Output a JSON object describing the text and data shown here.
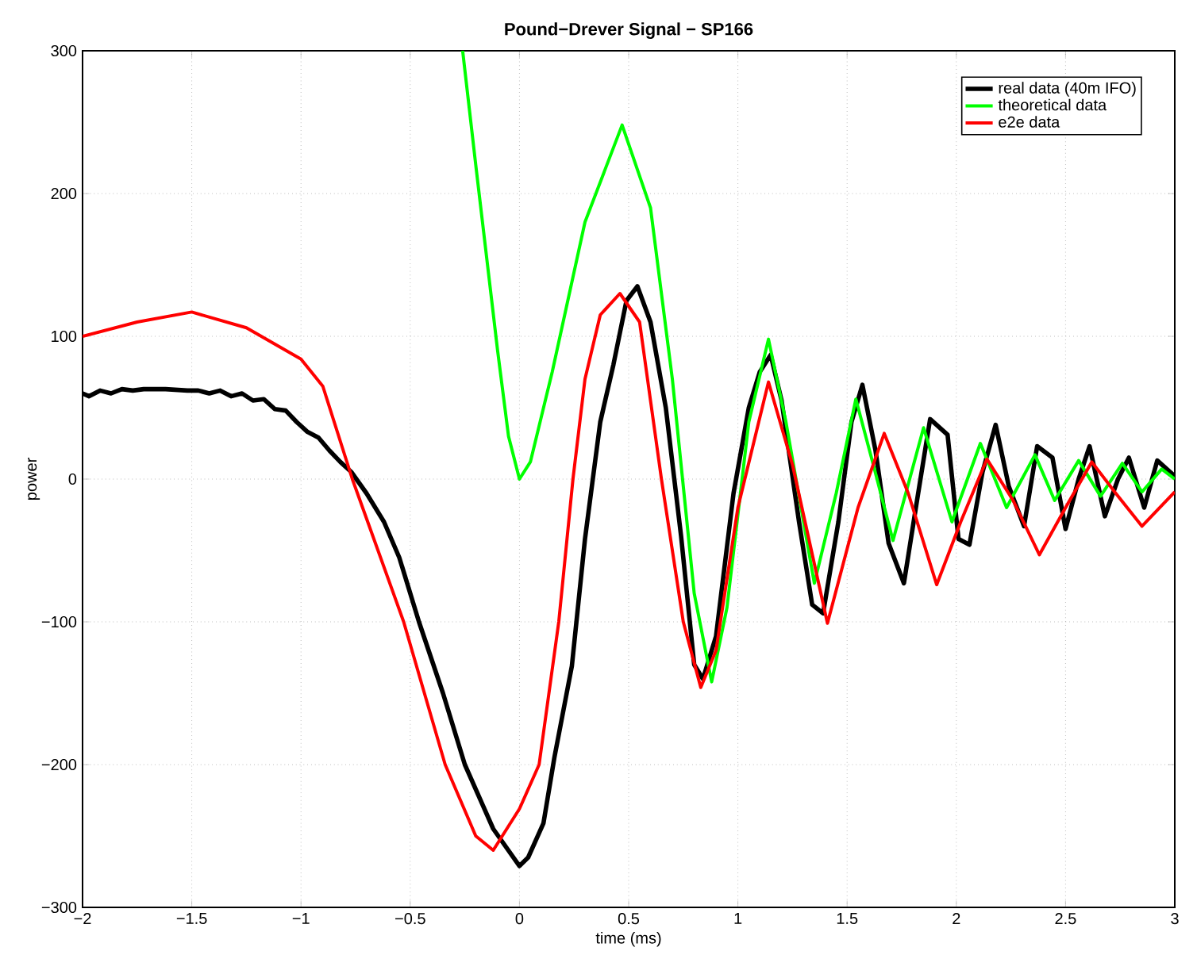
{
  "chart_data": {
    "type": "line",
    "title": "Pound−Drever Signal − SP166",
    "xlabel": "time (ms)",
    "ylabel": "power",
    "xlim": [
      -2,
      3
    ],
    "ylim": [
      -300,
      300
    ],
    "xticks": [
      {
        "value": -2,
        "label": "−2"
      },
      {
        "value": -1.5,
        "label": "−1.5"
      },
      {
        "value": -1,
        "label": "−1"
      },
      {
        "value": -0.5,
        "label": "−0.5"
      },
      0,
      0.5,
      1,
      1.5,
      2,
      2.5,
      3
    ],
    "yticks": [
      {
        "value": -300,
        "label": "−300"
      },
      {
        "value": -200,
        "label": "−200"
      },
      {
        "value": -100,
        "label": "−100"
      },
      0,
      100,
      200,
      300
    ],
    "grid": true,
    "legend": "top right",
    "line_style": "solid",
    "marker": "none",
    "series": [
      {
        "name": "real data (40m IFO)",
        "color": "#000000",
        "x": [
          -2,
          -1.97,
          -1.92,
          -1.87,
          -1.82,
          -1.77,
          -1.72,
          -1.62,
          -1.52,
          -1.47,
          -1.42,
          -1.37,
          -1.32,
          -1.27,
          -1.22,
          -1.17,
          -1.12,
          -1.07,
          -1.02,
          -0.97,
          -0.92,
          -0.87,
          -0.82,
          -0.77,
          -0.7,
          -0.62,
          -0.55,
          -0.46,
          -0.35,
          -0.25,
          -0.12,
          0,
          0.04,
          0.11,
          0.16,
          0.24,
          0.3,
          0.37,
          0.43,
          0.49,
          0.54,
          0.6,
          0.67,
          0.74,
          0.8,
          0.84,
          0.9,
          0.98,
          1.05,
          1.1,
          1.15,
          1.2,
          1.28,
          1.34,
          1.39,
          1.46,
          1.52,
          1.57,
          1.63,
          1.69,
          1.76,
          1.82,
          1.88,
          1.96,
          2.01,
          2.06,
          2.12,
          2.18,
          2.24,
          2.31,
          2.37,
          2.44,
          2.5,
          2.56,
          2.61,
          2.68,
          2.74,
          2.79,
          2.86,
          2.92,
          3
        ],
        "values": [
          60,
          58,
          62,
          60,
          63,
          62,
          63,
          63,
          62,
          62,
          60,
          62,
          58,
          60,
          55,
          56,
          49,
          48,
          40,
          33,
          29,
          20,
          12,
          5,
          -10,
          -30,
          -55,
          -100,
          -150,
          -200,
          -245,
          -271,
          -265,
          -241,
          -195,
          -131,
          -42,
          40,
          80,
          125,
          135,
          110,
          50,
          -40,
          -130,
          -140,
          -110,
          -10,
          50,
          75,
          87,
          55,
          -30,
          -88,
          -94,
          -30,
          40,
          66,
          20,
          -45,
          -73,
          -15,
          42,
          31,
          -42,
          -46,
          5,
          38,
          -5,
          -33,
          23,
          15,
          -35,
          0,
          23,
          -26,
          0,
          15,
          -20,
          13,
          2
        ]
      },
      {
        "name": "theoretical data",
        "color": "#00ff00",
        "x": [
          -0.26,
          -0.2,
          -0.1,
          -0.05,
          0,
          0.05,
          0.15,
          0.3,
          0.47,
          0.6,
          0.7,
          0.8,
          0.88,
          0.95,
          1.05,
          1.14,
          1.22,
          1.35,
          1.45,
          1.54,
          1.62,
          1.71,
          1.85,
          1.98,
          2.11,
          2.23,
          2.36,
          2.45,
          2.56,
          2.66,
          2.76,
          2.85,
          2.94,
          3
        ],
        "values": [
          300,
          220,
          90,
          30,
          0,
          12,
          75,
          180,
          248,
          190,
          70,
          -80,
          -142,
          -90,
          40,
          98,
          40,
          -73,
          -10,
          56,
          10,
          -43,
          36,
          -30,
          25,
          -20,
          17,
          -15,
          13,
          -12,
          11,
          -9,
          7,
          0
        ]
      },
      {
        "name": "e2e data",
        "color": "#ff0000",
        "x": [
          -2,
          -1.75,
          -1.5,
          -1.25,
          -1,
          -0.9,
          -0.765,
          -0.53,
          -0.34,
          -0.2,
          -0.12,
          0,
          0.09,
          0.18,
          0.245,
          0.3,
          0.37,
          0.46,
          0.55,
          0.65,
          0.75,
          0.83,
          0.9,
          1.0,
          1.14,
          1.25,
          1.41,
          1.55,
          1.67,
          1.78,
          1.91,
          2.02,
          2.14,
          2.26,
          2.38,
          2.5,
          2.62,
          2.73,
          2.85,
          3
        ],
        "values": [
          100,
          110,
          117,
          106,
          84,
          65,
          0,
          -100,
          -200,
          -250,
          -260,
          -231,
          -200,
          -100,
          0,
          70,
          115,
          130,
          110,
          0,
          -100,
          -146,
          -120,
          -20,
          68,
          10,
          -101,
          -20,
          32,
          -10,
          -74,
          -30,
          14,
          -15,
          -53,
          -20,
          12,
          -10,
          -33,
          -9
        ]
      }
    ]
  }
}
